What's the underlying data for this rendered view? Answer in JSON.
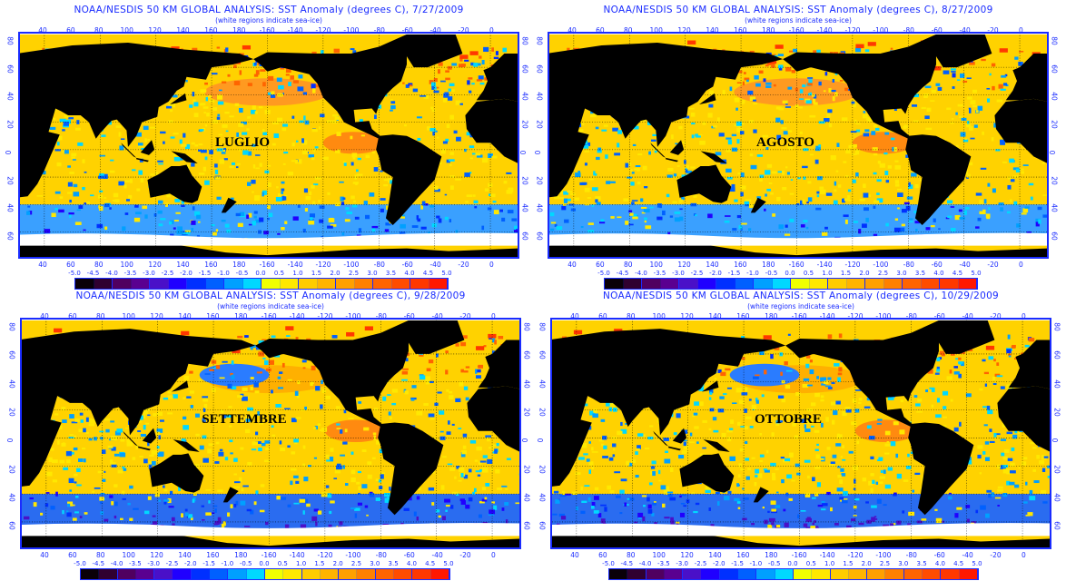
{
  "subtitle": "(white regions indicate sea-ice)",
  "lon_ticks": [
    "40",
    "60",
    "80",
    "100",
    "120",
    "140",
    "160",
    "180",
    "-160",
    "-140",
    "-120",
    "-100",
    "-80",
    "-60",
    "-40",
    "-20",
    "0"
  ],
  "lat_ticks": [
    "80",
    "60",
    "40",
    "20",
    "0",
    "20",
    "40",
    "60"
  ],
  "colorbar": {
    "labels": [
      "-5.0",
      "-4.5",
      "-4.0",
      "-3.5",
      "-3.0",
      "-2.5",
      "-2.0",
      "-1.5",
      "-1.0",
      "-0.5",
      "0.0",
      "0.5",
      "1.0",
      "1.5",
      "2.0",
      "2.5",
      "3.0",
      "3.5",
      "4.0",
      "4.5",
      "5.0"
    ],
    "colors": [
      "#0a0008",
      "#300030",
      "#500060",
      "#5a0090",
      "#4a10c8",
      "#2000ff",
      "#0030ff",
      "#0060ff",
      "#00a0ff",
      "#00d8ff",
      "#f0ff00",
      "#ffe800",
      "#ffcc00",
      "#ffb400",
      "#ffa000",
      "#ff8000",
      "#ff6400",
      "#ff4c00",
      "#ff3800",
      "#ff1800"
    ]
  },
  "panels": [
    {
      "title": "NOAA/NESDIS 50 KM GLOBAL ANALYSIS: SST Anomaly (degrees C), 7/27/2009",
      "label": "LUGLIO"
    },
    {
      "title": "NOAA/NESDIS 50 KM GLOBAL ANALYSIS: SST Anomaly (degrees C), 8/27/2009",
      "label": "AGOSTO"
    },
    {
      "title": "NOAA/NESDIS 50 KM GLOBAL ANALYSIS: SST Anomaly (degrees C), 9/28/2009",
      "label": "SETTEMBRE"
    },
    {
      "title": "NOAA/NESDIS 50 KM GLOBAL ANALYSIS: SST Anomaly (degrees C), 10/29/2009",
      "label": "OTTOBRE"
    }
  ]
}
